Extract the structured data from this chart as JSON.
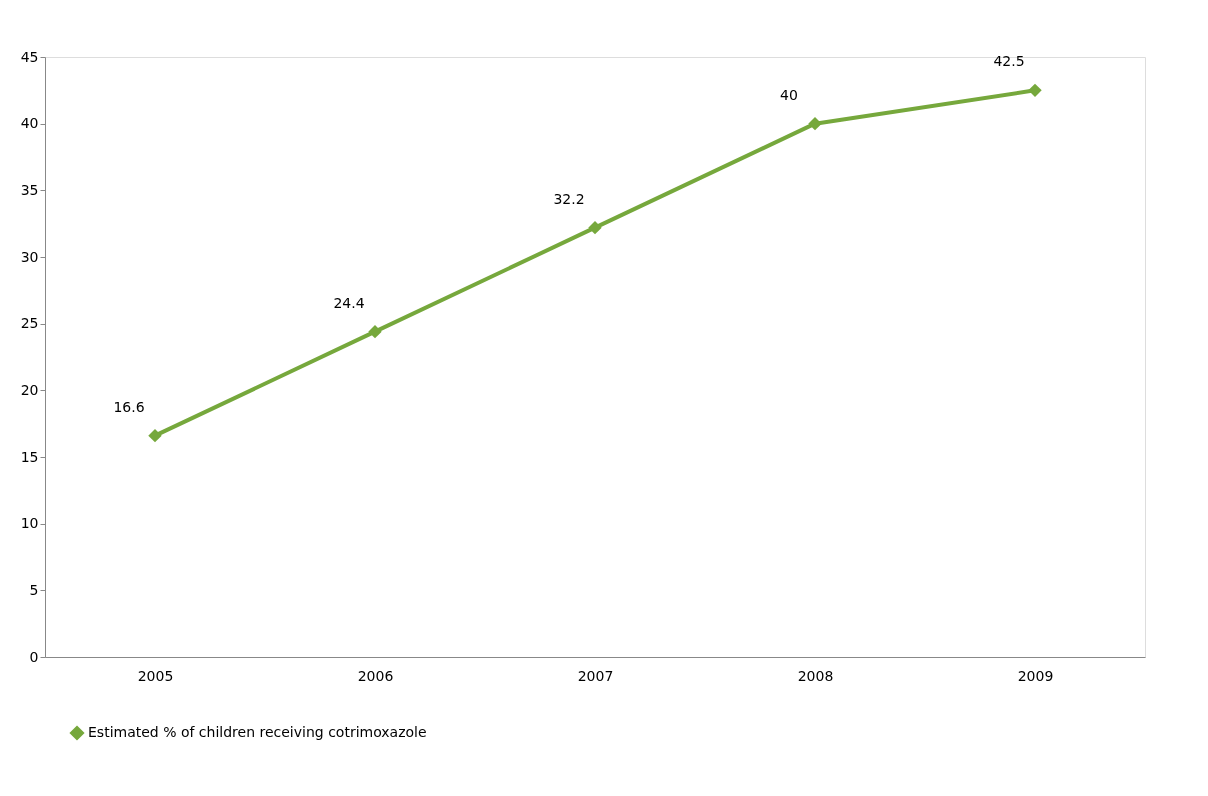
{
  "chart_data": {
    "type": "line",
    "categories": [
      "2005",
      "2006",
      "2007",
      "2008",
      "2009"
    ],
    "series": [
      {
        "name": "Estimated % of children receiving cotrimoxazole",
        "color": "#76a83c",
        "values": [
          16.6,
          24.4,
          32.2,
          40,
          42.5
        ]
      }
    ],
    "ylim": [
      0,
      45
    ],
    "yticks": [
      0,
      5,
      10,
      15,
      20,
      25,
      30,
      35,
      40,
      45
    ],
    "grid": false,
    "legend": "bottom",
    "marker": "diamond",
    "line_style": "solid",
    "data_labels": true
  }
}
